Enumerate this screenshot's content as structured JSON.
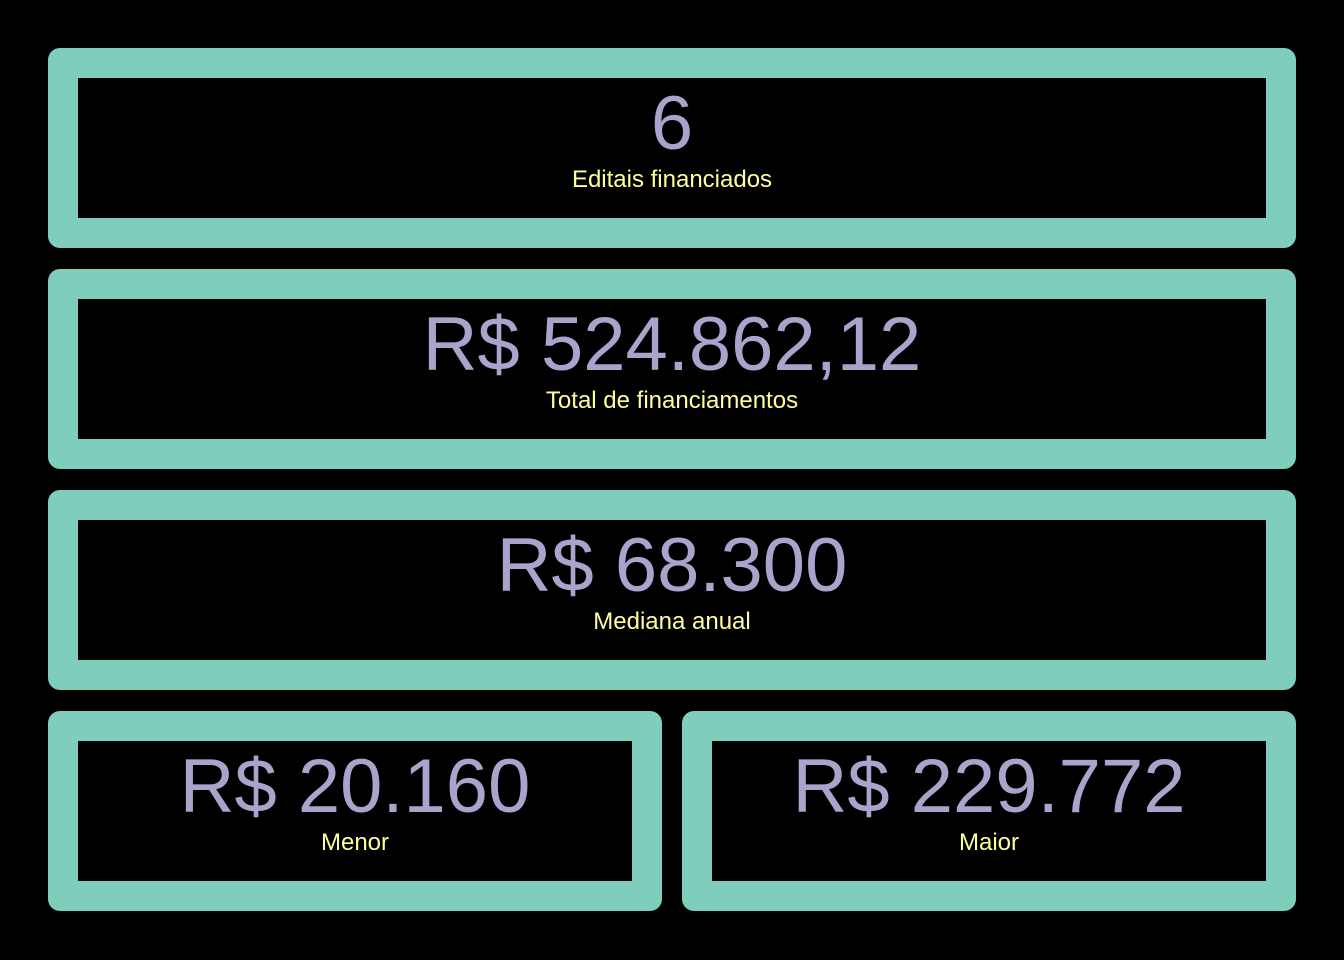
{
  "metrics": {
    "editais": {
      "value": "6",
      "label": "Editais financiados"
    },
    "total": {
      "value": "R$ 524.862,12",
      "label": "Total de financiamentos"
    },
    "mediana": {
      "value": "R$ 68.300",
      "label": "Mediana anual"
    },
    "menor": {
      "value": "R$ 20.160",
      "label": "Menor"
    },
    "maior": {
      "value": "R$ 229.772",
      "label": "Maior"
    }
  },
  "colors": {
    "background": "#000000",
    "card_border": "#7fcdbb",
    "value_text": "#a8a4cc",
    "label_text": "#ffff99"
  }
}
